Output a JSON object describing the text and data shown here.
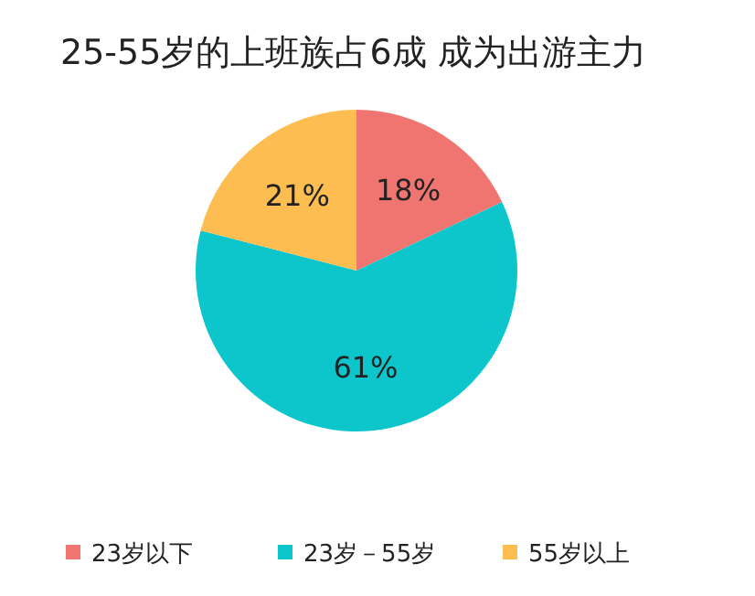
{
  "chart_data": {
    "type": "pie",
    "title": "25-55岁的上班族占6成 成为出游主力",
    "categories": [
      "23岁以下",
      "23岁－55岁",
      "55岁以上"
    ],
    "values": [
      18,
      61,
      21
    ],
    "colors": [
      "#f07470",
      "#0cc6cc",
      "#fdbd50"
    ],
    "value_labels": [
      "18%",
      "61%",
      "21%"
    ],
    "legend": "bottom"
  }
}
